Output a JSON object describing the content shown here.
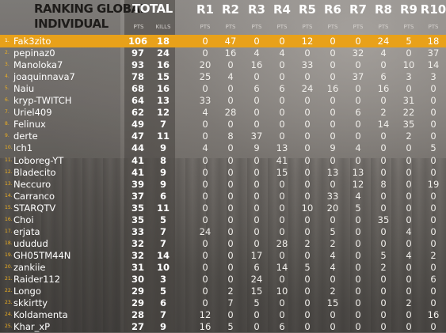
{
  "header": {
    "title_line1": "RANKING GLOBAL",
    "title_line2": "INDIVIDUAL",
    "total_label": "TOTAL",
    "pts_label": "PTS",
    "kills_label": "KILLS",
    "rounds": [
      "R1",
      "R2",
      "R3",
      "R4",
      "R5",
      "R6",
      "R7",
      "R8",
      "R9",
      "R10"
    ],
    "round_sub": "PTS"
  },
  "accent_color": "#e8a11a",
  "rows": [
    {
      "rank": "1.",
      "name": "Fak3zito",
      "pts": "106",
      "kills": "18",
      "r": [
        "0",
        "47",
        "0",
        "0",
        "12",
        "0",
        "0",
        "24",
        "5",
        "18"
      ]
    },
    {
      "rank": "2.",
      "name": "pepinaz0",
      "pts": "97",
      "kills": "24",
      "r": [
        "0",
        "16",
        "4",
        "4",
        "0",
        "0",
        "32",
        "4",
        "0",
        "37"
      ]
    },
    {
      "rank": "3.",
      "name": "Manoloka7",
      "pts": "93",
      "kills": "16",
      "r": [
        "20",
        "0",
        "16",
        "0",
        "33",
        "0",
        "0",
        "0",
        "10",
        "14"
      ]
    },
    {
      "rank": "4.",
      "name": "joaquinnava7",
      "pts": "78",
      "kills": "15",
      "r": [
        "25",
        "4",
        "0",
        "0",
        "0",
        "0",
        "37",
        "6",
        "3",
        "3"
      ]
    },
    {
      "rank": "5.",
      "name": "Naiu",
      "pts": "68",
      "kills": "16",
      "r": [
        "0",
        "0",
        "6",
        "6",
        "24",
        "16",
        "0",
        "16",
        "0",
        "0"
      ]
    },
    {
      "rank": "6.",
      "name": "kryp-TWITCH",
      "pts": "64",
      "kills": "13",
      "r": [
        "33",
        "0",
        "0",
        "0",
        "0",
        "0",
        "0",
        "0",
        "31",
        "0"
      ]
    },
    {
      "rank": "7.",
      "name": "Uriel409",
      "pts": "62",
      "kills": "12",
      "r": [
        "4",
        "28",
        "0",
        "0",
        "0",
        "0",
        "6",
        "2",
        "22",
        "0"
      ]
    },
    {
      "rank": "8.",
      "name": "Felinux",
      "pts": "49",
      "kills": "7",
      "r": [
        "0",
        "0",
        "0",
        "0",
        "0",
        "0",
        "0",
        "14",
        "35",
        "0"
      ]
    },
    {
      "rank": "9.",
      "name": "derte",
      "pts": "47",
      "kills": "11",
      "r": [
        "0",
        "8",
        "37",
        "0",
        "0",
        "0",
        "0",
        "0",
        "2",
        "0"
      ]
    },
    {
      "rank": "10.",
      "name": "lch1",
      "pts": "44",
      "kills": "9",
      "r": [
        "4",
        "0",
        "9",
        "13",
        "0",
        "9",
        "4",
        "0",
        "0",
        "5"
      ]
    },
    {
      "rank": "11.",
      "name": "Loboreg-YT",
      "pts": "41",
      "kills": "8",
      "r": [
        "0",
        "0",
        "0",
        "41",
        "0",
        "0",
        "0",
        "0",
        "0",
        "0"
      ]
    },
    {
      "rank": "12.",
      "name": "Bladecito",
      "pts": "41",
      "kills": "9",
      "r": [
        "0",
        "0",
        "0",
        "15",
        "0",
        "13",
        "13",
        "0",
        "0",
        "0"
      ]
    },
    {
      "rank": "13.",
      "name": "Neccuro",
      "pts": "39",
      "kills": "9",
      "r": [
        "0",
        "0",
        "0",
        "0",
        "0",
        "0",
        "12",
        "8",
        "0",
        "19"
      ]
    },
    {
      "rank": "14.",
      "name": "Carranco",
      "pts": "37",
      "kills": "6",
      "r": [
        "0",
        "0",
        "0",
        "0",
        "0",
        "33",
        "4",
        "0",
        "0",
        "0"
      ]
    },
    {
      "rank": "15.",
      "name": "STARQTV",
      "pts": "35",
      "kills": "11",
      "r": [
        "0",
        "0",
        "0",
        "0",
        "10",
        "20",
        "5",
        "0",
        "0",
        "0"
      ]
    },
    {
      "rank": "16.",
      "name": "Choi",
      "pts": "35",
      "kills": "5",
      "r": [
        "0",
        "0",
        "0",
        "0",
        "0",
        "0",
        "0",
        "35",
        "0",
        "0"
      ]
    },
    {
      "rank": "17.",
      "name": "erjata",
      "pts": "33",
      "kills": "7",
      "r": [
        "24",
        "0",
        "0",
        "0",
        "0",
        "5",
        "0",
        "0",
        "4",
        "0"
      ]
    },
    {
      "rank": "18.",
      "name": "ududud",
      "pts": "32",
      "kills": "7",
      "r": [
        "0",
        "0",
        "0",
        "28",
        "2",
        "2",
        "0",
        "0",
        "0",
        "0"
      ]
    },
    {
      "rank": "19.",
      "name": "GH05TM44N",
      "pts": "32",
      "kills": "14",
      "r": [
        "0",
        "0",
        "17",
        "0",
        "0",
        "4",
        "0",
        "5",
        "4",
        "2"
      ]
    },
    {
      "rank": "20.",
      "name": "zankiie",
      "pts": "31",
      "kills": "10",
      "r": [
        "0",
        "0",
        "6",
        "14",
        "5",
        "4",
        "0",
        "2",
        "0",
        "0"
      ]
    },
    {
      "rank": "21.",
      "name": "Raider112",
      "pts": "30",
      "kills": "3",
      "r": [
        "0",
        "0",
        "24",
        "0",
        "0",
        "0",
        "0",
        "0",
        "0",
        "6"
      ]
    },
    {
      "rank": "22.",
      "name": "Longo",
      "pts": "29",
      "kills": "5",
      "r": [
        "0",
        "2",
        "15",
        "10",
        "0",
        "2",
        "0",
        "0",
        "0",
        "0"
      ]
    },
    {
      "rank": "23.",
      "name": "skkirtty",
      "pts": "29",
      "kills": "6",
      "r": [
        "0",
        "7",
        "5",
        "0",
        "0",
        "15",
        "0",
        "0",
        "2",
        "0"
      ]
    },
    {
      "rank": "24.",
      "name": "Koldamenta",
      "pts": "28",
      "kills": "7",
      "r": [
        "12",
        "0",
        "0",
        "0",
        "0",
        "0",
        "0",
        "0",
        "0",
        "16"
      ]
    },
    {
      "rank": "25.",
      "name": "Khar_xP",
      "pts": "27",
      "kills": "9",
      "r": [
        "16",
        "5",
        "0",
        "6",
        "0",
        "0",
        "0",
        "0",
        "0",
        "0"
      ]
    }
  ]
}
